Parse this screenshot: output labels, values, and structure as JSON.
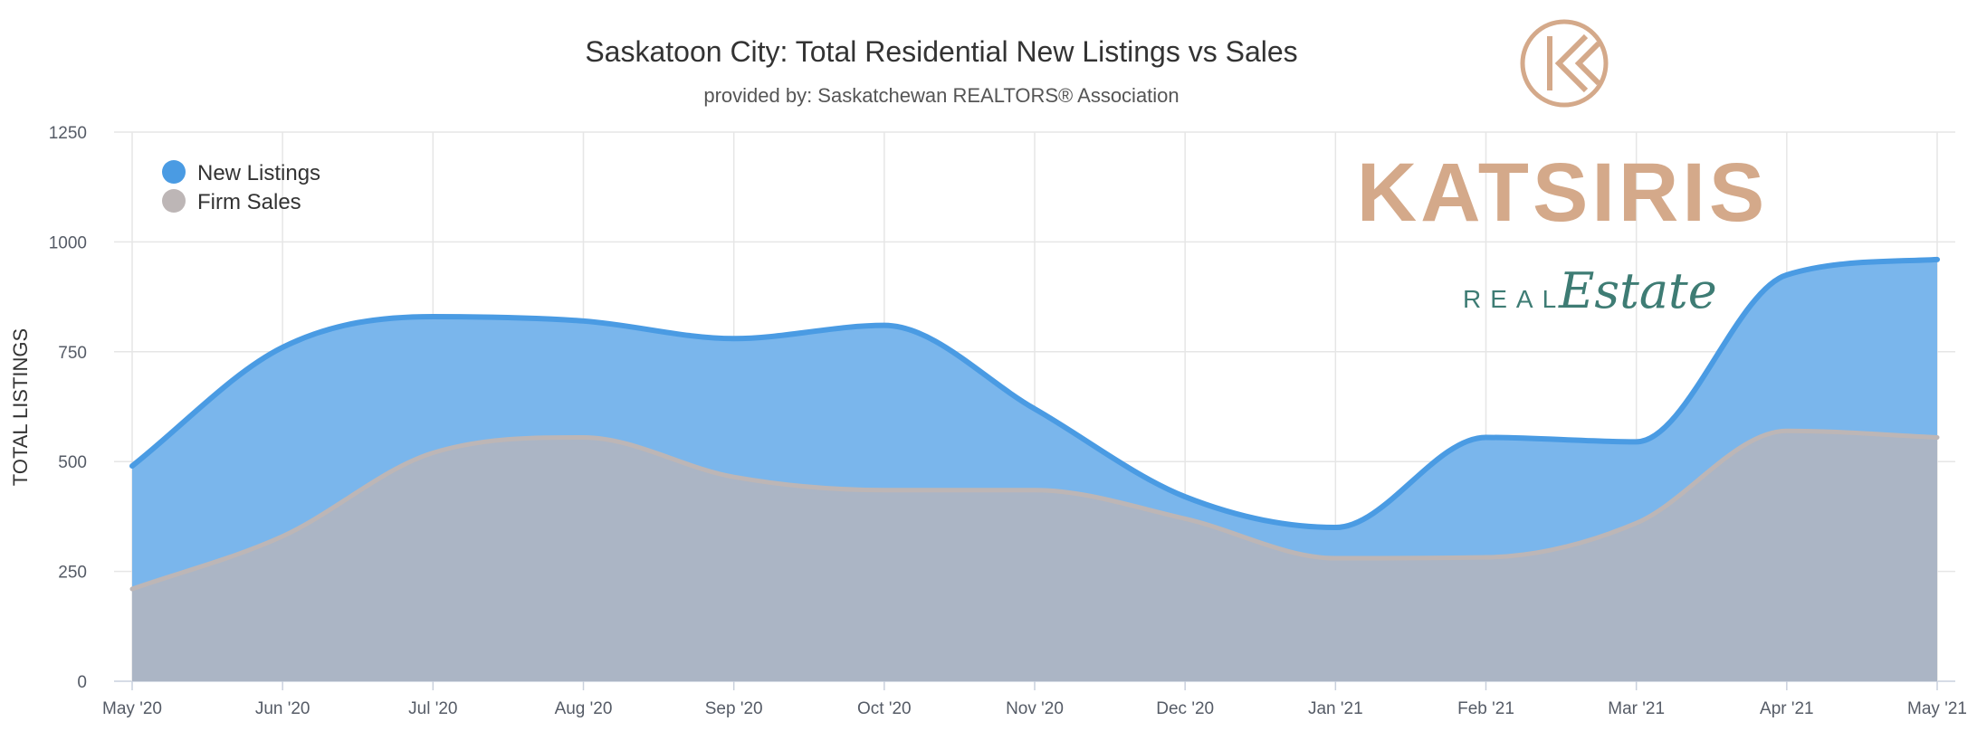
{
  "chart_data": {
    "type": "area",
    "title": "Saskatoon City: Total Residential New Listings vs Sales",
    "subtitle": "provided by: Saskatchewan REALTORS® Association",
    "ylabel": "TOTAL LISTINGS",
    "xlabel": "",
    "categories": [
      "May '20",
      "Jun '20",
      "Jul '20",
      "Aug '20",
      "Sep '20",
      "Oct '20",
      "Nov '20",
      "Dec '20",
      "Jan '21",
      "Feb '21",
      "Mar '21",
      "Apr '21",
      "May '21"
    ],
    "yticks": [
      "0",
      "250",
      "500",
      "750",
      "1000",
      "1250"
    ],
    "ylim": [
      0,
      1250
    ],
    "grid": true,
    "legend_position": "top-left",
    "series": [
      {
        "name": "New Listings",
        "color": "#4a9be3",
        "fill": "#7ab6ec",
        "values": [
          490,
          760,
          830,
          820,
          780,
          810,
          620,
          420,
          350,
          555,
          545,
          925,
          960
        ]
      },
      {
        "name": "Firm Sales",
        "color": "#bdb6b6",
        "fill": "#abb5c5",
        "values": [
          210,
          330,
          520,
          555,
          465,
          435,
          435,
          370,
          280,
          282,
          360,
          570,
          555
        ]
      }
    ]
  },
  "brand": {
    "name": "KATSIRIS",
    "tag_real": "REAL",
    "tag_estate": "Estate",
    "color_primary": "#d4a98a",
    "color_secondary": "#3e7c74"
  }
}
